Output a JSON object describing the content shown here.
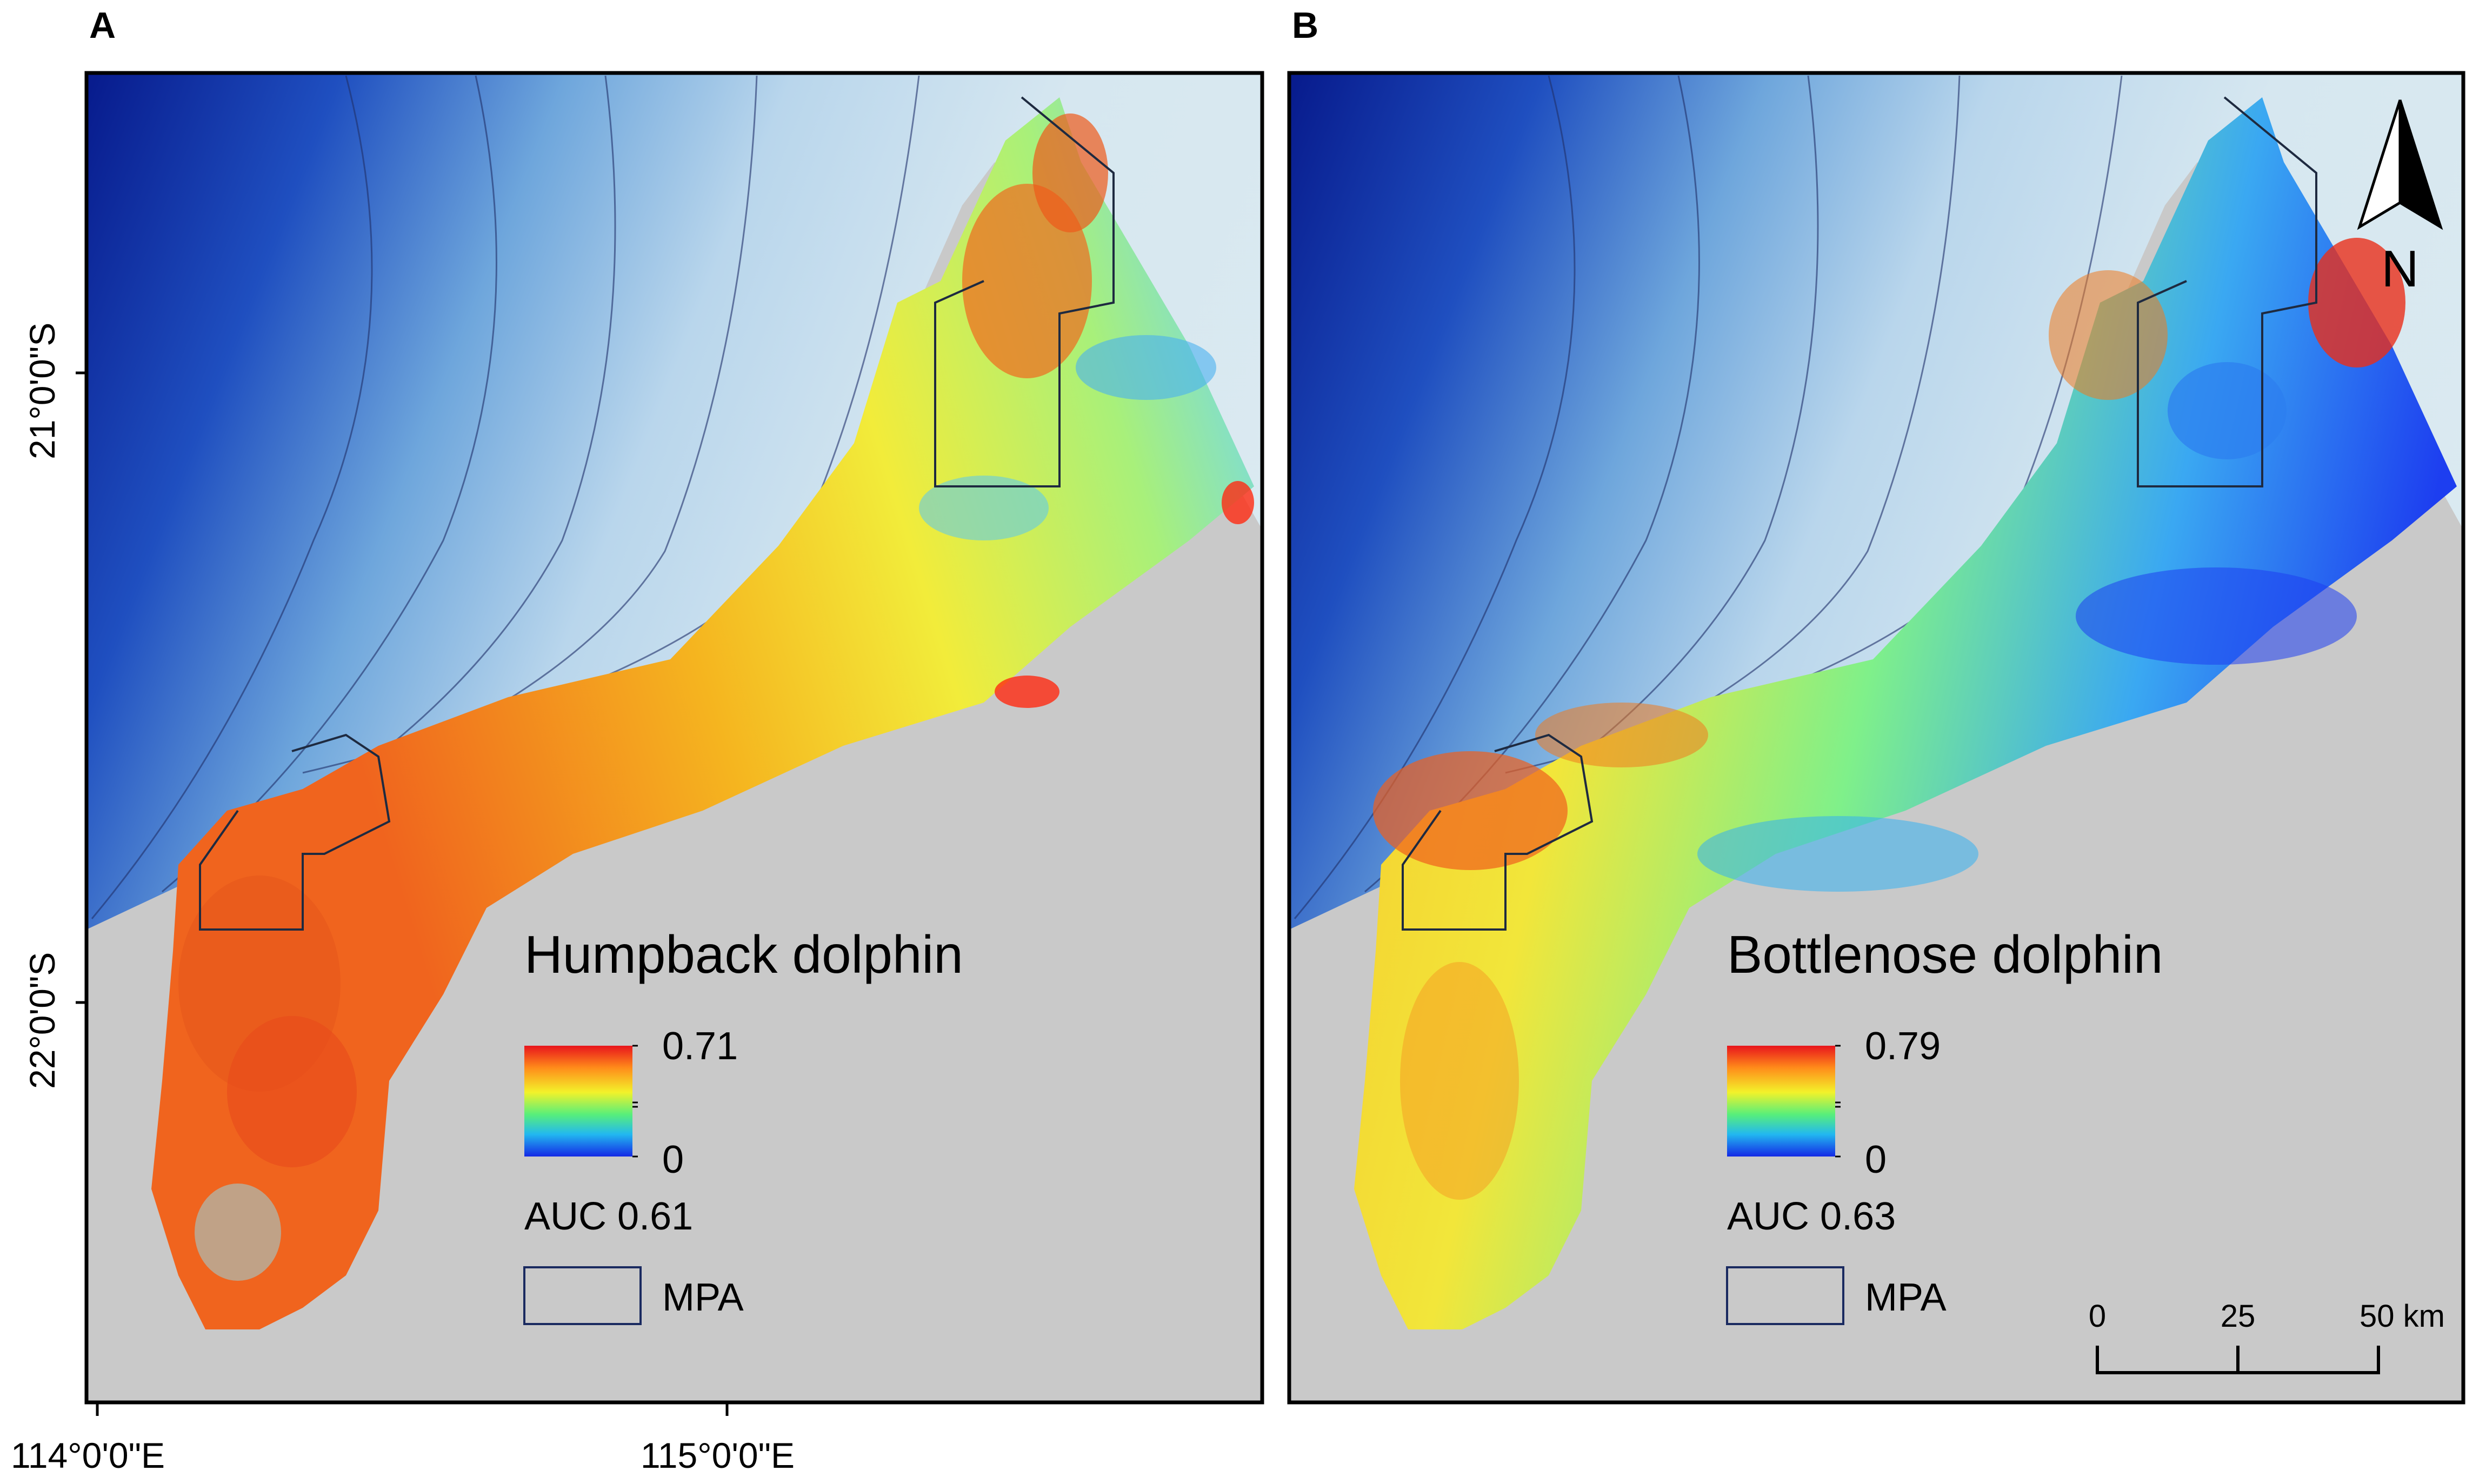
{
  "panels": [
    {
      "letter": "A",
      "species": "Humpback dolphin",
      "legend_max": "0.71",
      "legend_min": "0",
      "auc": "AUC 0.61",
      "mpa_label": "MPA"
    },
    {
      "letter": "B",
      "species": "Bottlenose dolphin",
      "legend_max": "0.79",
      "legend_min": "0",
      "auc": "AUC 0.63",
      "mpa_label": "MPA",
      "north_label": "N",
      "scalebar": {
        "t0": "0",
        "t1": "25",
        "t2": "50 km"
      }
    }
  ],
  "axes": {
    "lat_ticks": [
      "21°0'0\"S",
      "22°0'0\"S"
    ],
    "lon_ticks": [
      "114°0'0\"E",
      "115°0'0\"E"
    ]
  },
  "colors": {
    "land": "#c9c9c9",
    "deep_ocean": "#0a1a86",
    "shallow_ocean": "#d5e6ee",
    "high_suitability": "#e8231a",
    "low_suitability": "#1b2fe0"
  }
}
